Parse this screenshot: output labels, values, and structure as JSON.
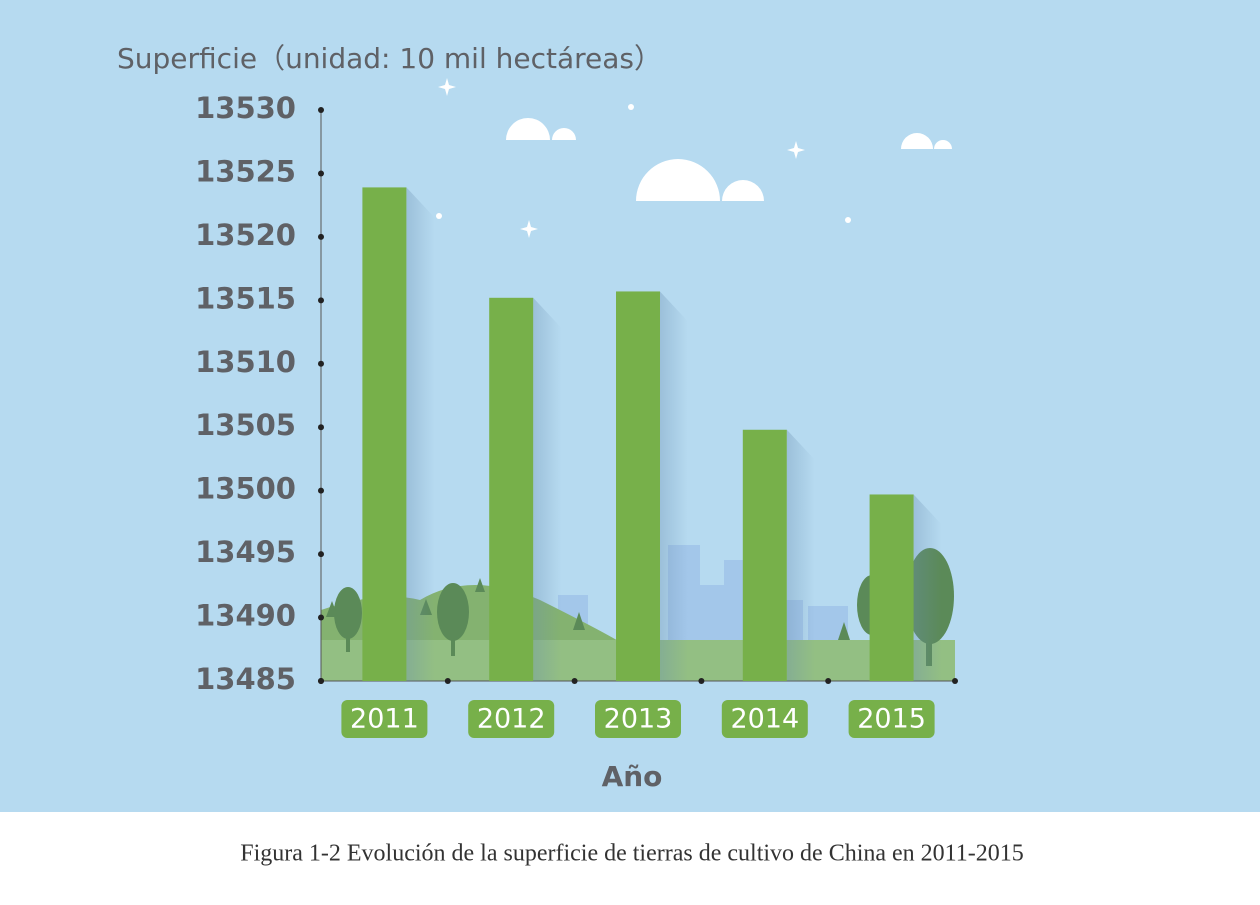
{
  "chart_data": {
    "type": "bar",
    "y_label": "Superficie（unidad: 10 mil hectáreas）",
    "x_label": "Año",
    "caption": "Figura 1-2 Evolución de la superficie de tierras de cultivo de China en 2011-2015",
    "categories": [
      "2011",
      "2012",
      "2013",
      "2014",
      "2015"
    ],
    "values": [
      13523.9,
      13515.2,
      13515.7,
      13504.8,
      13499.7
    ],
    "color": "#77b04a",
    "ylim": [
      13485,
      13530
    ],
    "yticks": [
      13485,
      13490,
      13495,
      13500,
      13505,
      13510,
      13515,
      13520,
      13525,
      13530
    ]
  }
}
